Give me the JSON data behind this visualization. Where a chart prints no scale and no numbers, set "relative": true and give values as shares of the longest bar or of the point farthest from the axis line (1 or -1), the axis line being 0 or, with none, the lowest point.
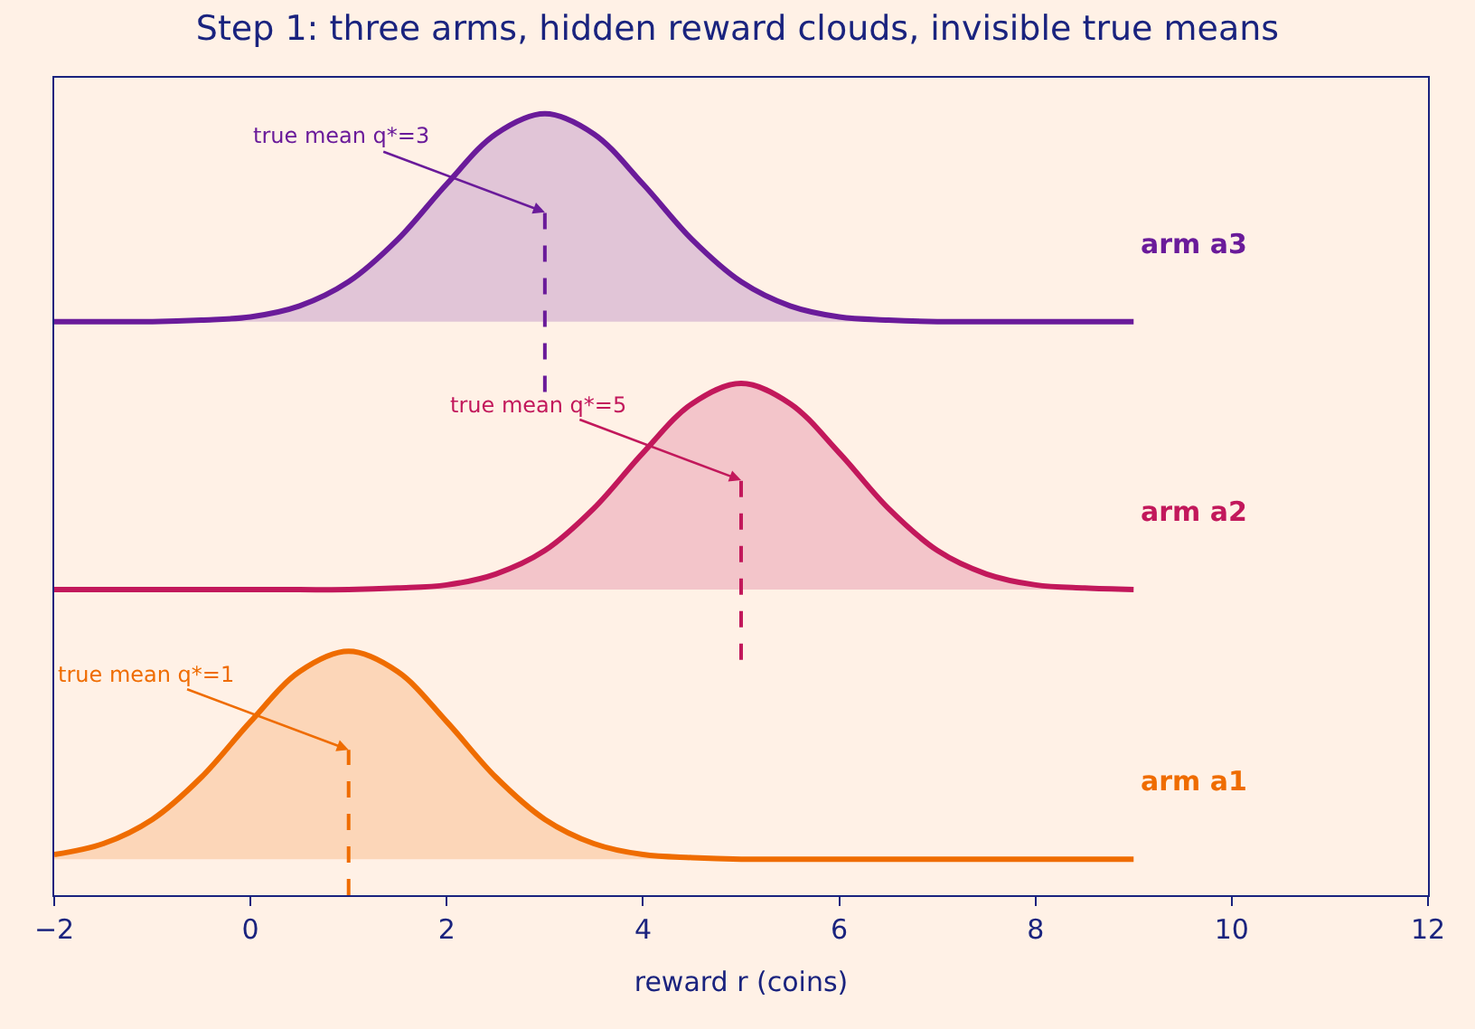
{
  "chart_data": {
    "type": "area",
    "relative": true,
    "title": "Step 1: three arms, hidden reward clouds, invisible true means",
    "xlabel": "reward r (coins)",
    "x": [
      -2,
      -1.5,
      -1,
      -0.5,
      0,
      0.5,
      1,
      1.5,
      2,
      2.5,
      3,
      3.5,
      4,
      4.5,
      5,
      5.5,
      6,
      6.5,
      7,
      7.5,
      8,
      8.5,
      9
    ],
    "xlim": [
      -2,
      12
    ],
    "xticks": [
      -2,
      0,
      2,
      4,
      6,
      8,
      10,
      12
    ],
    "grid": false,
    "legend": false,
    "tick_labels": "x",
    "series": [
      {
        "name": "arm a1",
        "color": "#ef6c00",
        "values": [
          0.052,
          0.066,
          0.097,
          0.151,
          0.222,
          0.286,
          0.312,
          0.286,
          0.222,
          0.151,
          0.097,
          0.066,
          0.052,
          0.048,
          0.046,
          0.046,
          0.046,
          0.046,
          0.046,
          0.046,
          0.046,
          0.046,
          0.046
        ]
      },
      {
        "name": "arm a2",
        "color": "#c2185b",
        "values": [
          0.391,
          0.391,
          0.391,
          0.391,
          0.391,
          0.391,
          0.391,
          0.393,
          0.397,
          0.411,
          0.441,
          0.495,
          0.566,
          0.629,
          0.655,
          0.629,
          0.566,
          0.495,
          0.441,
          0.411,
          0.397,
          0.393,
          0.391
        ]
      },
      {
        "name": "arm a3",
        "color": "#6a1b9a",
        "values": [
          0.734,
          0.734,
          0.734,
          0.736,
          0.74,
          0.754,
          0.785,
          0.839,
          0.91,
          0.974,
          1.0,
          0.974,
          0.91,
          0.839,
          0.785,
          0.754,
          0.74,
          0.736,
          0.734,
          0.734,
          0.734,
          0.734,
          0.734
        ]
      }
    ],
    "ref_lines": [
      {
        "axis": "x",
        "value": 1,
        "color": "#ef6c00",
        "line_style": "dashed"
      },
      {
        "axis": "x",
        "value": 5,
        "color": "#c2185b",
        "line_style": "dashed"
      },
      {
        "axis": "x",
        "value": 3,
        "color": "#6a1b9a",
        "line_style": "dashed"
      }
    ],
    "annotations": [
      "true mean q*=1",
      "true mean q*=5",
      "true mean q*=3"
    ]
  }
}
